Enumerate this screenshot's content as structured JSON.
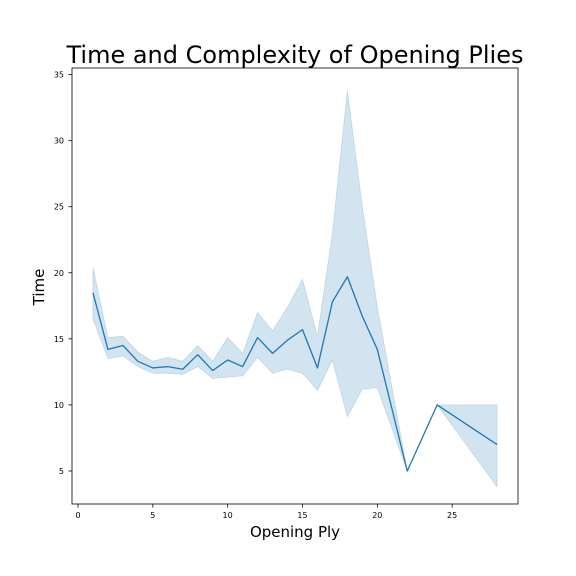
{
  "chart_data": {
    "type": "line",
    "title": "Time and Complexity of Opening Plies",
    "xlabel": "Opening Ply",
    "ylabel": "Time",
    "xlim": [
      -0.4,
      29.4
    ],
    "ylim": [
      2.5,
      35.5
    ],
    "xticks": [
      0,
      5,
      10,
      15,
      20,
      25
    ],
    "yticks": [
      5,
      10,
      15,
      20,
      25,
      30,
      35
    ],
    "grid": false,
    "series": [
      {
        "color": "#1f77b4",
        "x": [
          1,
          2,
          3,
          4,
          5,
          6,
          7,
          8,
          9,
          10,
          11,
          12,
          13,
          14,
          15,
          16,
          17,
          18,
          19,
          20,
          22,
          24,
          28
        ],
        "values": [
          18.5,
          14.2,
          14.5,
          13.3,
          12.8,
          12.9,
          12.7,
          13.8,
          12.6,
          13.4,
          12.9,
          15.1,
          13.9,
          14.9,
          15.7,
          12.8,
          17.8,
          19.7,
          16.7,
          14.2,
          5.0,
          10.0,
          7.0
        ],
        "ci_low": [
          16.5,
          13.5,
          13.7,
          12.9,
          12.4,
          12.4,
          12.3,
          12.9,
          12.0,
          12.1,
          12.2,
          13.6,
          12.4,
          12.7,
          12.4,
          11.1,
          13.4,
          9.1,
          11.2,
          11.3,
          5.0,
          10.0,
          3.8
        ],
        "ci_high": [
          20.4,
          15.1,
          15.2,
          14.0,
          13.3,
          13.6,
          13.3,
          14.5,
          13.3,
          15.1,
          13.9,
          17.0,
          15.6,
          17.4,
          19.5,
          15.2,
          23.0,
          33.8,
          25.0,
          17.4,
          5.0,
          10.0,
          10.0
        ]
      }
    ]
  }
}
